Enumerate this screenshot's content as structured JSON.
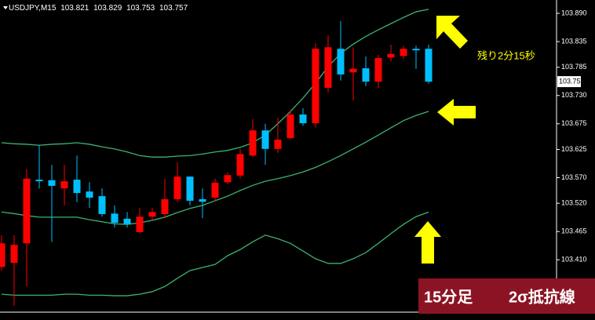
{
  "chart_data": {
    "type": "candlestick",
    "symbol": "USDJPY,M15",
    "up_color": "#ff0000",
    "down_color": "#00bfff",
    "open": [
      103.396,
      103.404,
      103.442,
      103.566,
      103.565,
      103.549,
      103.566,
      103.543,
      103.534,
      103.5,
      103.49,
      103.464,
      103.494,
      103.499,
      103.528,
      103.572,
      103.528,
      103.531,
      103.561,
      103.574,
      103.613,
      103.662,
      103.626,
      103.647,
      103.693,
      103.676,
      103.745,
      103.821,
      103.775,
      103.783,
      103.757,
      103.804,
      103.807,
      103.821,
      103.821
    ],
    "high": [
      103.458,
      103.458,
      103.587,
      103.633,
      103.595,
      103.595,
      103.613,
      103.561,
      103.549,
      103.516,
      103.503,
      103.511,
      103.511,
      103.568,
      103.6,
      103.572,
      103.549,
      103.568,
      103.58,
      103.626,
      103.684,
      103.675,
      103.687,
      103.702,
      103.705,
      103.832,
      103.847,
      103.875,
      103.824,
      103.806,
      103.809,
      103.829,
      103.827,
      103.827,
      103.829
    ],
    "low": [
      103.389,
      103.32,
      103.358,
      103.549,
      103.445,
      103.516,
      103.522,
      103.511,
      103.494,
      103.473,
      103.473,
      103.461,
      103.488,
      103.491,
      103.522,
      103.516,
      103.491,
      103.525,
      103.557,
      103.568,
      103.61,
      103.595,
      103.618,
      103.644,
      103.671,
      103.668,
      103.736,
      103.759,
      103.72,
      103.748,
      103.745,
      103.797,
      103.801,
      103.782,
      103.753
    ],
    "close": [
      103.442,
      103.439,
      103.568,
      103.563,
      103.554,
      103.563,
      103.54,
      103.531,
      103.499,
      103.482,
      103.48,
      103.494,
      103.503,
      103.528,
      103.572,
      103.525,
      103.523,
      103.56,
      103.575,
      103.616,
      103.662,
      103.626,
      103.644,
      103.693,
      103.676,
      103.821,
      103.824,
      103.771,
      103.782,
      103.757,
      103.803,
      103.811,
      103.821,
      103.818,
      103.757
    ],
    "bands": [
      {
        "color": "#3cb371",
        "values": [
          103.638,
          103.636,
          103.635,
          103.633,
          103.635,
          103.636,
          103.638,
          103.635,
          103.63,
          103.626,
          103.62,
          103.613,
          103.61,
          103.61,
          103.612,
          103.613,
          103.616,
          103.62,
          103.623,
          103.629,
          103.638,
          103.653,
          103.675,
          103.699,
          103.725,
          103.754,
          103.786,
          103.812,
          103.83,
          103.845,
          103.858,
          103.87,
          103.882,
          103.893,
          103.898
        ]
      },
      {
        "color": "#3cb371",
        "values": [
          103.503,
          103.5,
          103.496,
          103.493,
          103.493,
          103.493,
          103.493,
          103.488,
          103.484,
          103.48,
          103.479,
          103.482,
          103.487,
          103.493,
          103.502,
          103.51,
          103.516,
          103.525,
          103.534,
          103.545,
          103.555,
          103.563,
          103.568,
          103.574,
          103.581,
          103.59,
          103.601,
          103.613,
          103.626,
          103.639,
          103.653,
          103.667,
          103.681,
          103.691,
          103.699
        ]
      },
      {
        "color": "#3cb371",
        "values": [
          103.343,
          103.341,
          103.341,
          103.341,
          103.341,
          103.343,
          103.343,
          103.341,
          103.341,
          103.34,
          103.34,
          103.343,
          103.348,
          103.358,
          103.374,
          103.389,
          103.395,
          103.401,
          103.418,
          103.43,
          103.445,
          103.458,
          103.451,
          103.442,
          103.427,
          103.412,
          103.403,
          103.403,
          103.412,
          103.424,
          103.442,
          103.461,
          103.479,
          103.494,
          103.503
        ]
      }
    ],
    "ylim": [
      103.916,
      103.308
    ],
    "yticks": [
      {
        "value": 103.89,
        "label": "103.890"
      },
      103.835,
      103.785,
      {
        "value": 103.73,
        "label": "103.730"
      },
      103.675,
      103.625,
      {
        "value": 103.57,
        "label": "103.570"
      },
      {
        "value": 103.52,
        "label": "103.520"
      },
      103.465,
      {
        "value": 103.41,
        "label": "103.410"
      }
    ]
  },
  "annotations": {
    "countdown": "残り2分15秒",
    "timeframe": "15分足",
    "band_label": "2σ抵抗線"
  }
}
